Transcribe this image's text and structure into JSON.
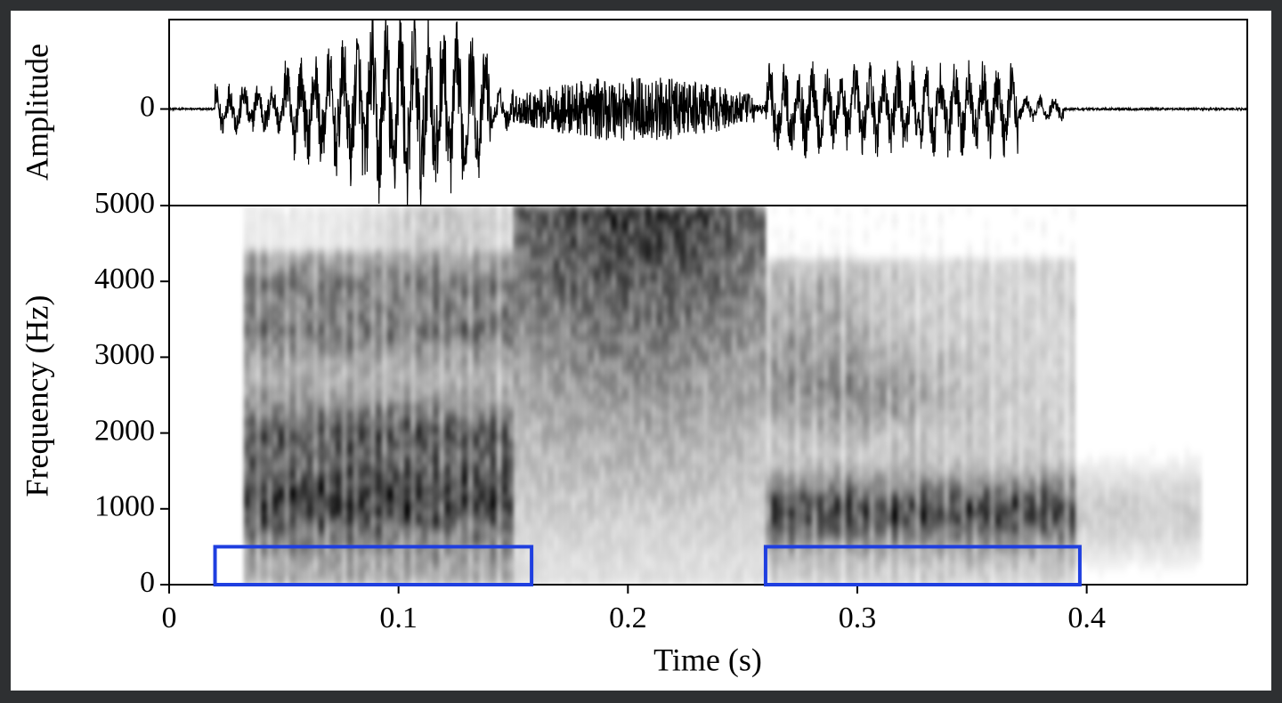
{
  "chart_data": [
    {
      "type": "waveform",
      "ylabel": "Amplitude",
      "ylim": [
        -1,
        1
      ],
      "yticks": [
        0
      ],
      "xlim": [
        0,
        0.47
      ],
      "color": "#000000"
    },
    {
      "type": "spectrogram",
      "xlabel": "Time (s)",
      "ylabel": "Frequency (Hz)",
      "xlim": [
        0,
        0.47
      ],
      "xticks": [
        0,
        0.1,
        0.2,
        0.3,
        0.4
      ],
      "ylim": [
        0,
        5000
      ],
      "yticks": [
        0,
        1000,
        2000,
        3000,
        4000,
        5000
      ],
      "highlights": [
        {
          "x": [
            0.02,
            0.158
          ],
          "y": [
            0,
            500
          ]
        },
        {
          "x": [
            0.26,
            0.397
          ],
          "y": [
            0,
            500
          ]
        }
      ],
      "highlight_color": "#1f3fe0"
    }
  ]
}
